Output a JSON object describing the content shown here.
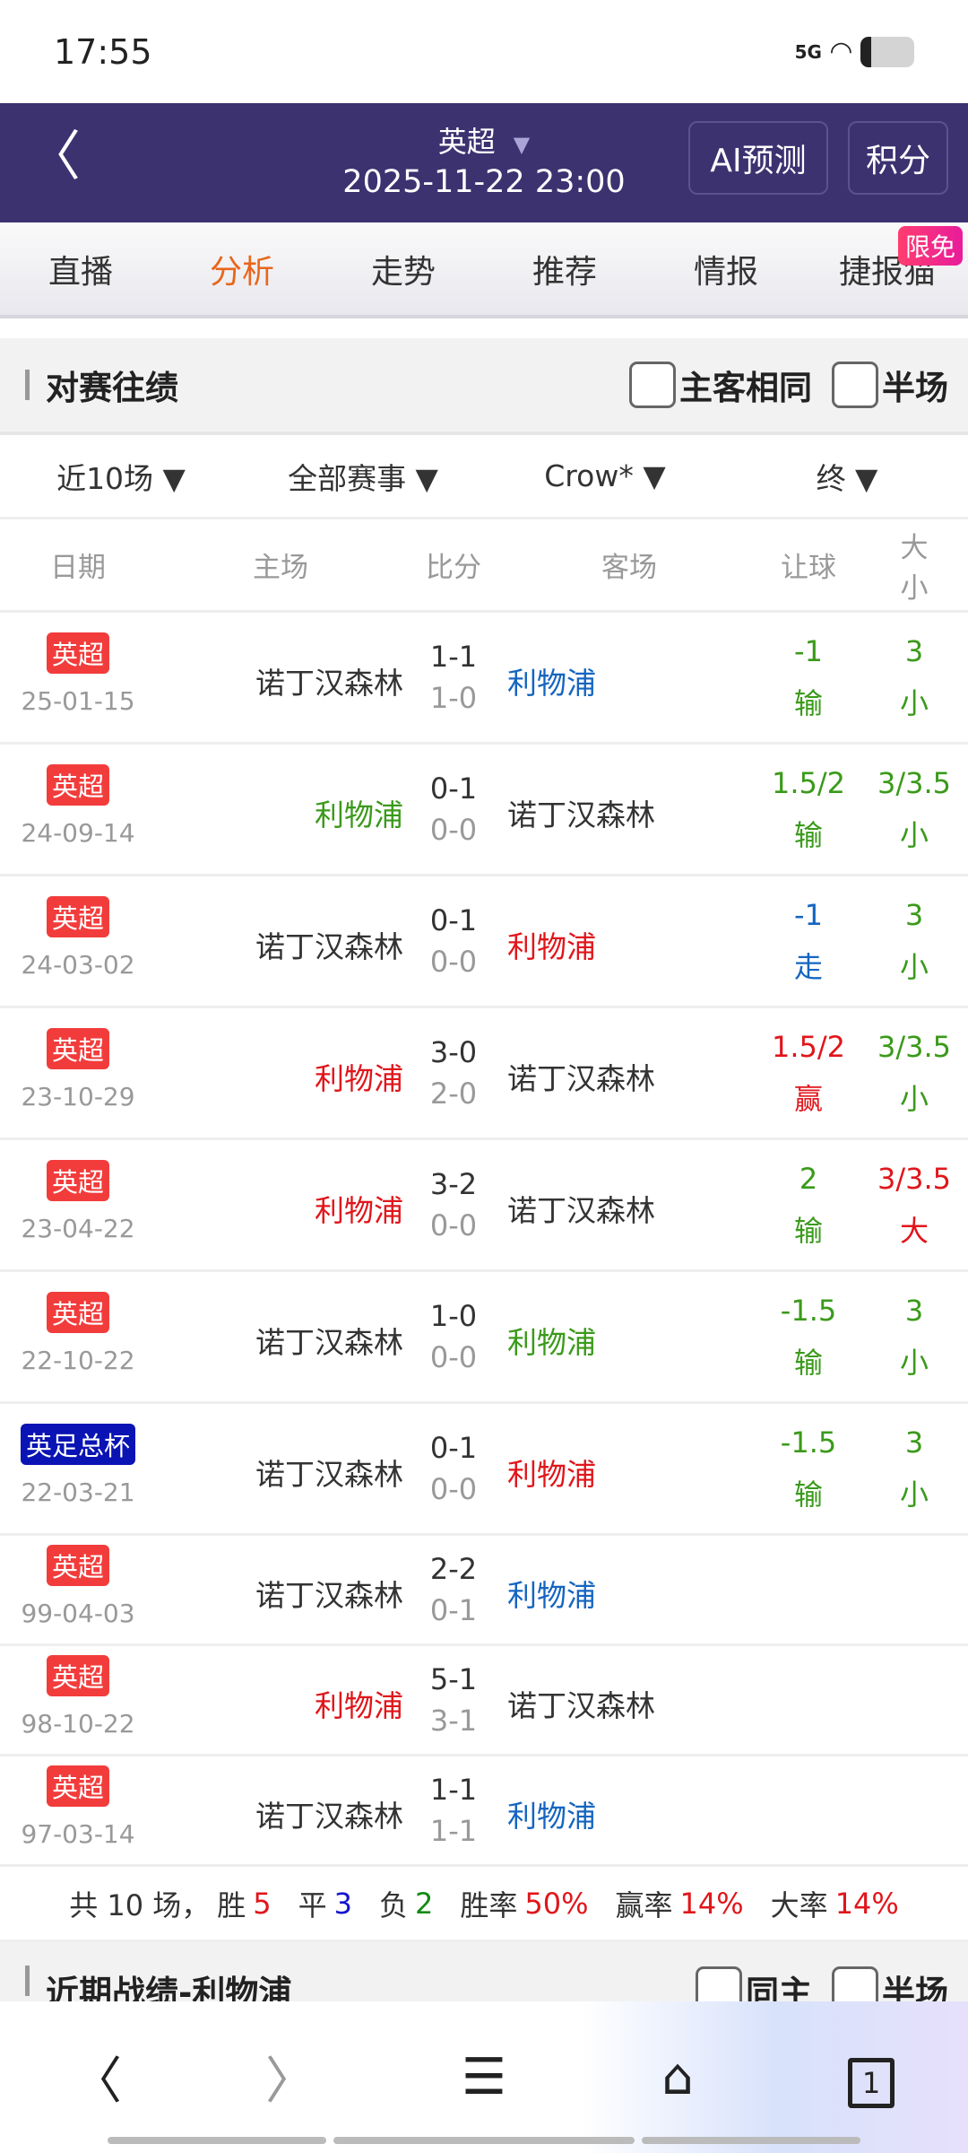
{
  "status": {
    "time": "17:55",
    "network": "5G",
    "battery_icon": "battery-icon"
  },
  "header": {
    "league": "英超",
    "datetime": "2025-11-22 23:00",
    "ai_button": "AI预测",
    "standings_button": "积分",
    "bg_color": "#3d3270"
  },
  "tabs": [
    {
      "label": "直播"
    },
    {
      "label": "分析",
      "active": true
    },
    {
      "label": "走势"
    },
    {
      "label": "推荐"
    },
    {
      "label": "情报"
    },
    {
      "label": "捷报猫",
      "badge": "限免"
    }
  ],
  "h2h": {
    "title": "对赛往绩",
    "check_same": "主客相同",
    "check_half": "半场",
    "filters": [
      "近10场",
      "全部赛事",
      "Crow*",
      "终"
    ],
    "columns": [
      "日期",
      "主场",
      "比分",
      "客场",
      "让球",
      "大小"
    ],
    "rows": [
      {
        "league": "英超",
        "league_color": "#f23c3c",
        "date": "25-01-15",
        "home": "诺丁汉森林",
        "home_color": "#333333",
        "score": "1-1",
        "ht": "1-0",
        "away": "利物浦",
        "away_color": "#1565c0",
        "hcp": "-1",
        "hcp_res": "输",
        "hcp_color": "#3a9a1a",
        "ou": "3",
        "ou_res": "小",
        "ou_color": "#3a9a1a"
      },
      {
        "league": "英超",
        "league_color": "#f23c3c",
        "date": "24-09-14",
        "home": "利物浦",
        "home_color": "#3a9a1a",
        "score": "0-1",
        "ht": "0-0",
        "away": "诺丁汉森林",
        "away_color": "#333333",
        "hcp": "1.5/2",
        "hcp_res": "输",
        "hcp_color": "#3a9a1a",
        "ou": "3/3.5",
        "ou_res": "小",
        "ou_color": "#3a9a1a"
      },
      {
        "league": "英超",
        "league_color": "#f23c3c",
        "date": "24-03-02",
        "home": "诺丁汉森林",
        "home_color": "#333333",
        "score": "0-1",
        "ht": "0-0",
        "away": "利物浦",
        "away_color": "#e0161b",
        "hcp": "-1",
        "hcp_res": "走",
        "hcp_color": "#1565c0",
        "ou": "3",
        "ou_res": "小",
        "ou_color": "#3a9a1a"
      },
      {
        "league": "英超",
        "league_color": "#f23c3c",
        "date": "23-10-29",
        "home": "利物浦",
        "home_color": "#e0161b",
        "score": "3-0",
        "ht": "2-0",
        "away": "诺丁汉森林",
        "away_color": "#333333",
        "hcp": "1.5/2",
        "hcp_res": "赢",
        "hcp_color": "#e0161b",
        "ou": "3/3.5",
        "ou_res": "小",
        "ou_color": "#3a9a1a"
      },
      {
        "league": "英超",
        "league_color": "#f23c3c",
        "date": "23-04-22",
        "home": "利物浦",
        "home_color": "#e0161b",
        "score": "3-2",
        "ht": "0-0",
        "away": "诺丁汉森林",
        "away_color": "#333333",
        "hcp": "2",
        "hcp_res": "输",
        "hcp_color": "#3a9a1a",
        "ou": "3/3.5",
        "ou_res": "大",
        "ou_color": "#e0161b"
      },
      {
        "league": "英超",
        "league_color": "#f23c3c",
        "date": "22-10-22",
        "home": "诺丁汉森林",
        "home_color": "#333333",
        "score": "1-0",
        "ht": "0-0",
        "away": "利物浦",
        "away_color": "#3a9a1a",
        "hcp": "-1.5",
        "hcp_res": "输",
        "hcp_color": "#3a9a1a",
        "ou": "3",
        "ou_res": "小",
        "ou_color": "#3a9a1a"
      },
      {
        "league": "英足总杯",
        "league_color": "#0a14b4",
        "date": "22-03-21",
        "home": "诺丁汉森林",
        "home_color": "#333333",
        "score": "0-1",
        "ht": "0-0",
        "away": "利物浦",
        "away_color": "#e0161b",
        "hcp": "-1.5",
        "hcp_res": "输",
        "hcp_color": "#3a9a1a",
        "ou": "3",
        "ou_res": "小",
        "ou_color": "#3a9a1a"
      },
      {
        "league": "英超",
        "league_color": "#f23c3c",
        "date": "99-04-03",
        "home": "诺丁汉森林",
        "home_color": "#333333",
        "score": "2-2",
        "ht": "0-1",
        "away": "利物浦",
        "away_color": "#1565c0"
      },
      {
        "league": "英超",
        "league_color": "#f23c3c",
        "date": "98-10-22",
        "home": "利物浦",
        "home_color": "#e0161b",
        "score": "5-1",
        "ht": "3-1",
        "away": "诺丁汉森林",
        "away_color": "#333333"
      },
      {
        "league": "英超",
        "league_color": "#f23c3c",
        "date": "97-03-14",
        "home": "诺丁汉森林",
        "home_color": "#333333",
        "score": "1-1",
        "ht": "1-1",
        "away": "利物浦",
        "away_color": "#1565c0"
      }
    ],
    "summary": {
      "total_label": "共 10 场，",
      "win_label": "胜",
      "win": "5",
      "draw_label": "平",
      "draw": "3",
      "loss_label": "负",
      "loss": "2",
      "winrate_label": "胜率",
      "winrate": "50%",
      "hcp_rate_label": "赢率",
      "hcp_rate": "14%",
      "over_rate_label": "大率",
      "over_rate": "14%"
    }
  },
  "recent": {
    "title": "近期战绩-利物浦",
    "check_same": "同主",
    "check_half": "半场"
  },
  "bottom_nav": {
    "tab_count": "1"
  }
}
